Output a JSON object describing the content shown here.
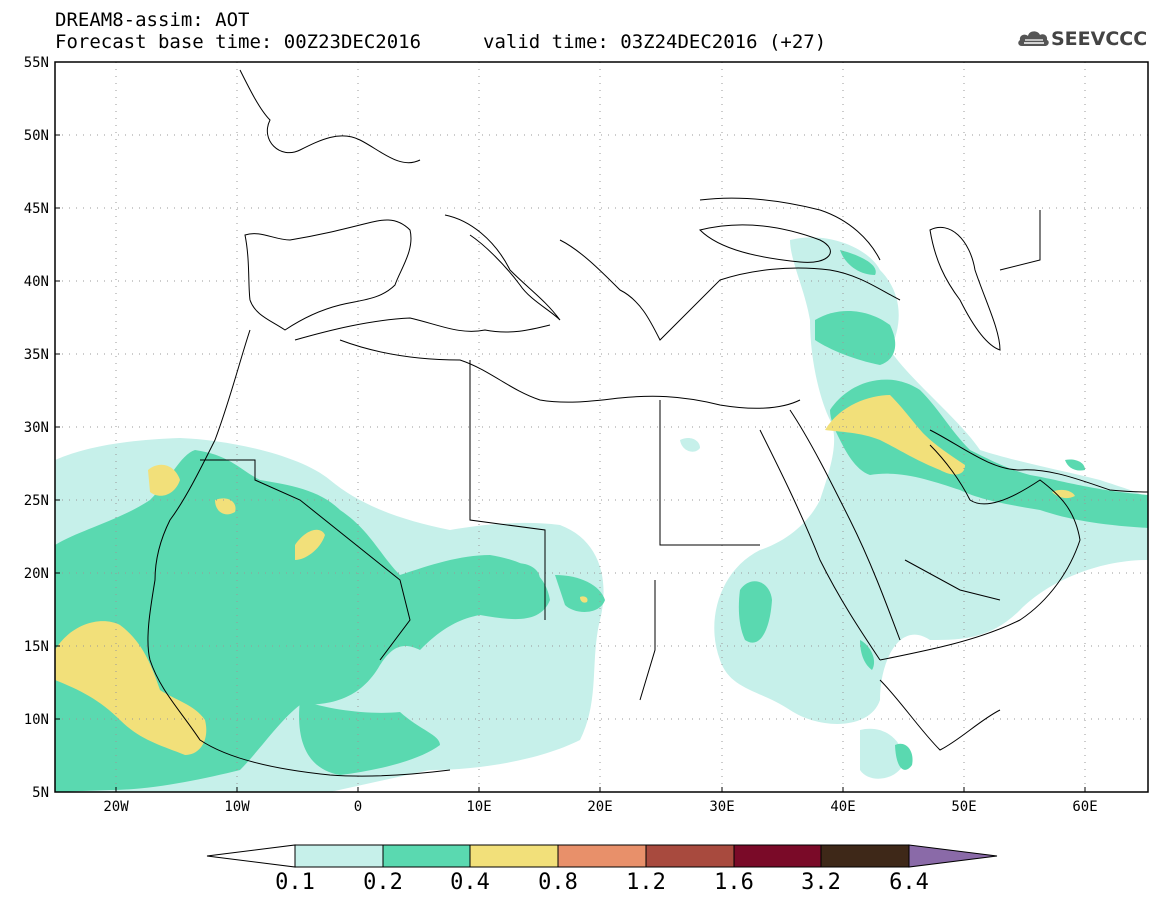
{
  "header": {
    "line1": "DREAM8-assim: AOT",
    "base_time": "Forecast base time: 00Z23DEC2016",
    "valid_time": "valid time: 03Z24DEC2016 (+27)"
  },
  "logo": {
    "text": "SEEVCCC",
    "icon": "cloud-icon"
  },
  "map": {
    "projection": "lat-lon",
    "lon_range": [
      -25,
      65
    ],
    "lat_range": [
      5,
      55
    ],
    "lat_labels": [
      "55N",
      "50N",
      "45N",
      "40N",
      "35N",
      "30N",
      "25N",
      "20N",
      "15N",
      "10N",
      "5N"
    ],
    "lon_labels": [
      "20W",
      "10W",
      "0",
      "10E",
      "20E",
      "30E",
      "40E",
      "50E",
      "60E"
    ],
    "grid": "dotted"
  },
  "colorbar": {
    "labels": [
      "0.1",
      "0.2",
      "0.4",
      "0.8",
      "1.2",
      "1.6",
      "3.2",
      "6.4"
    ],
    "colors": [
      "#ffffff",
      "#c6f0ea",
      "#5ad9b0",
      "#f2e07a",
      "#e8906a",
      "#a84a3e",
      "#7a0a28",
      "#3e2818",
      "#8a6aa8"
    ]
  }
}
